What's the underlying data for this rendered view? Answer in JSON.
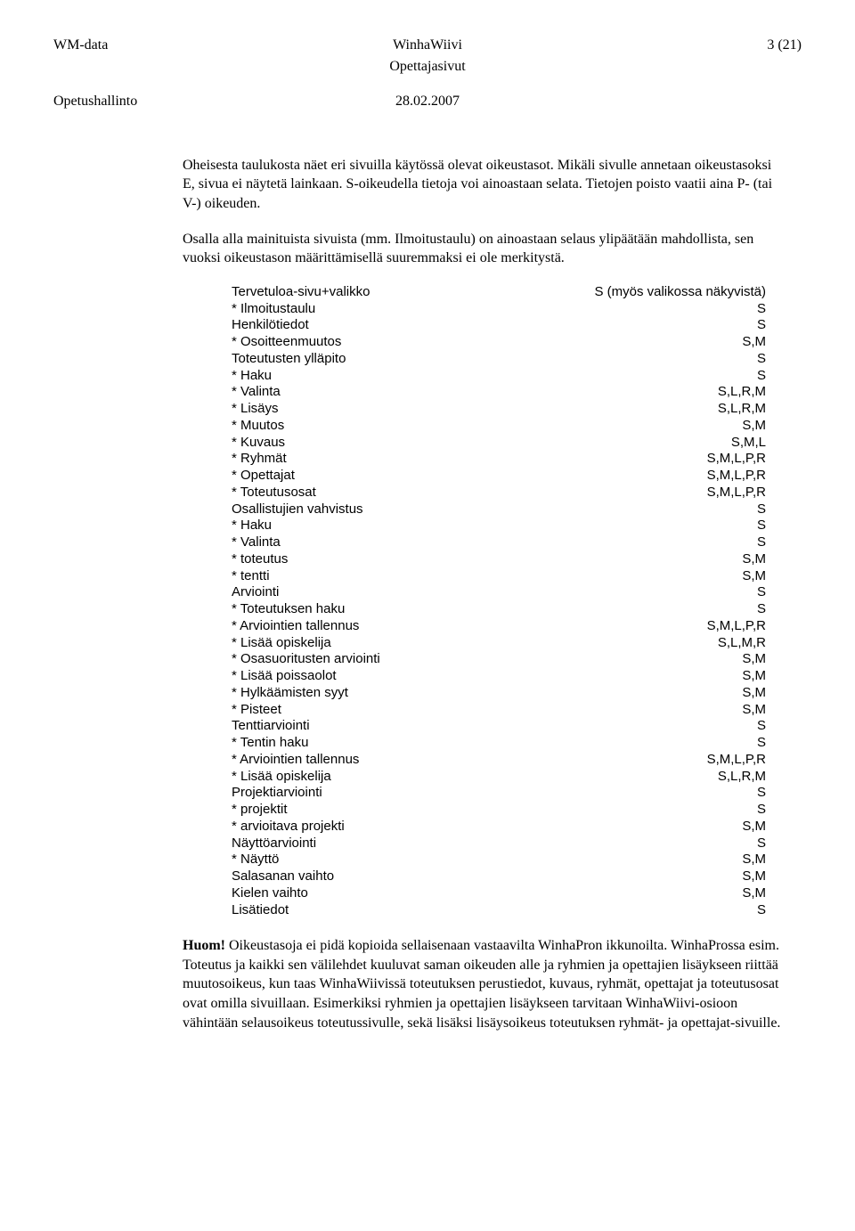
{
  "header": {
    "left": "WM-data",
    "centerLine1": "WinhaWiivi",
    "centerLine2": "Opettajasivut",
    "right": "3 (21)"
  },
  "subheader": {
    "left": "Opetushallinto",
    "center": "28.02.2007",
    "right": ""
  },
  "para1": "Oheisesta taulukosta näet eri sivuilla käytössä olevat oikeustasot. Mikäli sivulle annetaan oikeustasoksi E, sivua ei näytetä lainkaan. S-oikeudella tietoja voi ainoastaan selata. Tietojen poisto vaatii aina P- (tai V-) oikeuden.",
  "para2": "Osalla alla mainituista sivuista (mm. Ilmoitustaulu) on ainoastaan selaus ylipäätään mahdollista, sen vuoksi oikeustason määrittämisellä suuremmaksi ei ole merkitystä.",
  "rights": [
    {
      "label": "Tervetuloa-sivu+valikko",
      "value": "S (myös valikossa näkyvistä)"
    },
    {
      "label": "* Ilmoitustaulu",
      "value": "S"
    },
    {
      "label": "Henkilötiedot",
      "value": "S"
    },
    {
      "label": "* Osoitteenmuutos",
      "value": "S,M"
    },
    {
      "label": "Toteutusten ylläpito",
      "value": "S"
    },
    {
      "label": "* Haku",
      "value": "S"
    },
    {
      "label": "* Valinta",
      "value": "S,L,R,M"
    },
    {
      "label": "* Lisäys",
      "value": "S,L,R,M"
    },
    {
      "label": "* Muutos",
      "value": "S,M"
    },
    {
      "label": "* Kuvaus",
      "value": "S,M,L"
    },
    {
      "label": "* Ryhmät",
      "value": "S,M,L,P,R"
    },
    {
      "label": "* Opettajat",
      "value": "S,M,L,P,R"
    },
    {
      "label": "* Toteutusosat",
      "value": "S,M,L,P,R"
    },
    {
      "label": "Osallistujien vahvistus",
      "value": "S"
    },
    {
      "label": "* Haku",
      "value": "S"
    },
    {
      "label": "* Valinta",
      "value": "S"
    },
    {
      "label": "* toteutus",
      "value": "S,M"
    },
    {
      "label": "* tentti",
      "value": "S,M"
    },
    {
      "label": "Arviointi",
      "value": "S"
    },
    {
      "label": "* Toteutuksen haku",
      "value": "S"
    },
    {
      "label": "* Arviointien tallennus",
      "value": "S,M,L,P,R"
    },
    {
      "label": "* Lisää opiskelija",
      "value": "S,L,M,R"
    },
    {
      "label": "* Osasuoritusten arviointi",
      "value": "S,M"
    },
    {
      "label": "* Lisää poissaolot",
      "value": "S,M"
    },
    {
      "label": "* Hylkäämisten syyt",
      "value": "S,M"
    },
    {
      "label": "* Pisteet",
      "value": "S,M"
    },
    {
      "label": "Tenttiarviointi",
      "value": "S"
    },
    {
      "label": "* Tentin haku",
      "value": "S"
    },
    {
      "label": "* Arviointien tallennus",
      "value": "S,M,L,P,R"
    },
    {
      "label": "* Lisää opiskelija",
      "value": "S,L,R,M"
    },
    {
      "label": "Projektiarviointi",
      "value": "S"
    },
    {
      "label": "* projektit",
      "value": "S"
    },
    {
      "label": "* arvioitava projekti",
      "value": "S,M"
    },
    {
      "label": "Näyttöarviointi",
      "value": "S"
    },
    {
      "label": "* Näyttö",
      "value": "S,M"
    },
    {
      "label": "Salasanan vaihto",
      "value": "S,M"
    },
    {
      "label": "Kielen vaihto",
      "value": "S,M"
    },
    {
      "label": "Lisätiedot",
      "value": "S"
    }
  ],
  "footer": {
    "boldLead": "Huom!",
    "rest": " Oikeustasoja ei pidä kopioida sellaisenaan vastaavilta WinhaPron ikkunoilta. WinhaProssa esim. Toteutus ja kaikki sen välilehdet kuuluvat saman oikeuden alle ja ryhmien ja opettajien lisäykseen riittää muutosoikeus, kun taas WinhaWiivissä toteutuksen perustiedot, kuvaus, ryhmät, opettajat ja toteutusosat ovat omilla sivuillaan. Esimerkiksi ryhmien ja opettajien lisäykseen tarvitaan WinhaWiivi-osioon vähintään selausoikeus toteutussivulle, sekä lisäksi lisäysoikeus toteutuksen ryhmät- ja opettajat-sivuille."
  }
}
